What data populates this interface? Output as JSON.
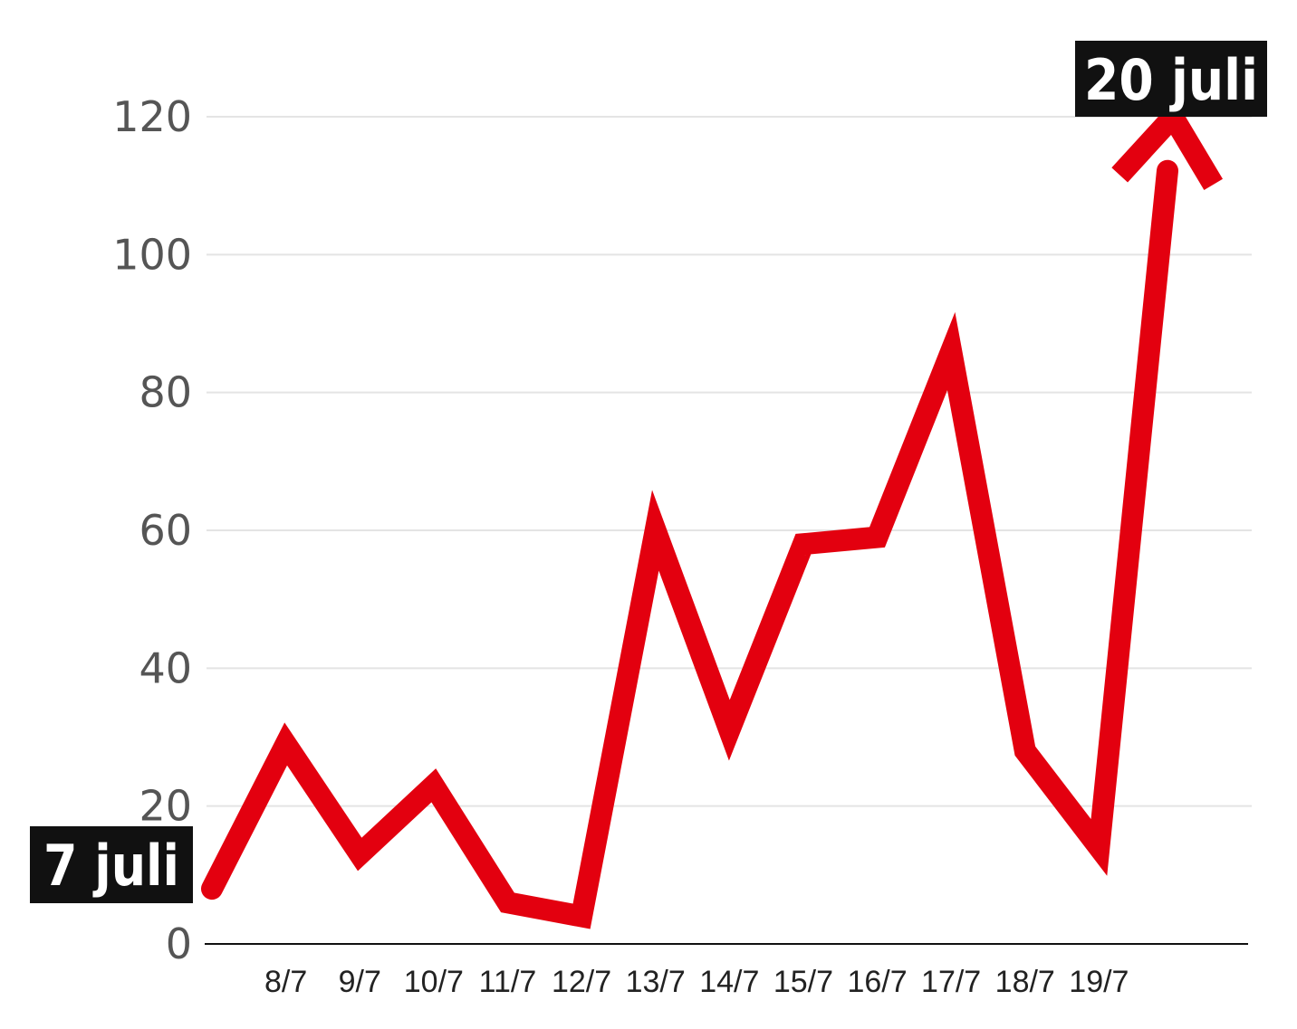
{
  "chart_data": {
    "type": "line",
    "x": [
      "7/7",
      "8/7",
      "9/7",
      "10/7",
      "11/7",
      "12/7",
      "13/7",
      "14/7",
      "15/7",
      "16/7",
      "17/7",
      "18/7",
      "19/7",
      "20/7"
    ],
    "x_tick_labels": [
      "8/7",
      "9/7",
      "10/7",
      "11/7",
      "12/7",
      "13/7",
      "14/7",
      "15/7",
      "16/7",
      "17/7",
      "18/7",
      "19/7"
    ],
    "values": [
      8,
      29,
      13,
      23,
      6,
      4,
      60,
      31,
      58,
      59,
      86,
      28,
      14,
      120
    ],
    "ylim": [
      0,
      120
    ],
    "yticks": [
      0,
      20,
      40,
      60,
      80,
      100,
      120
    ],
    "grid": true,
    "start_label": "7 juli",
    "end_label": "20 juli",
    "line_color": "#e3000f",
    "label_bg_color": "#111111"
  }
}
